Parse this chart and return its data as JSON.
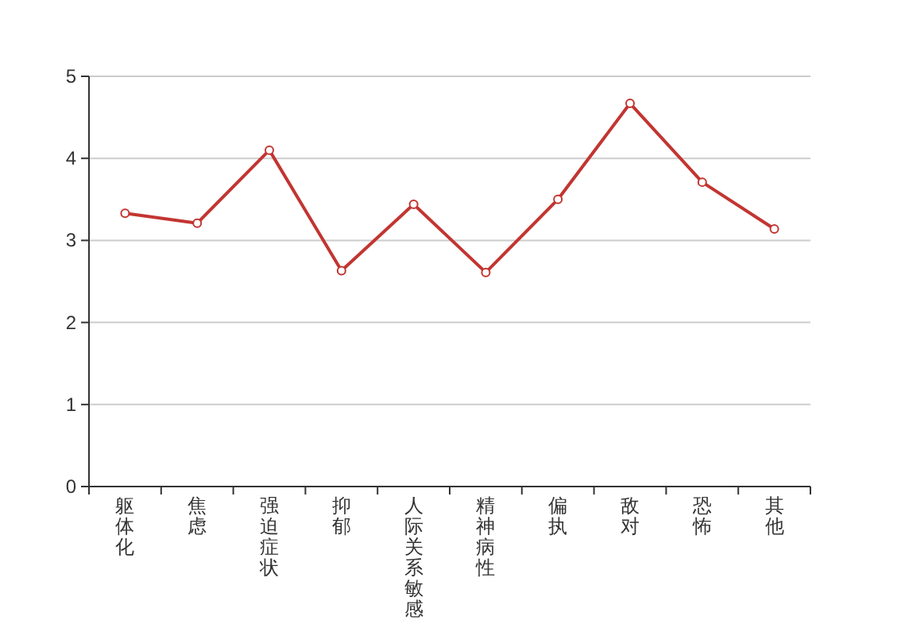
{
  "chart_data": {
    "type": "line",
    "categories": [
      "躯体化",
      "焦虑",
      "强迫症状",
      "抑郁",
      "人际关系敏感",
      "精神病性",
      "偏执",
      "敌对",
      "恐怖",
      "其他"
    ],
    "series": [
      {
        "color": "#c23531",
        "values": [
          3.33,
          3.21,
          4.1,
          2.63,
          3.44,
          2.61,
          3.5,
          4.67,
          3.71,
          3.14
        ]
      }
    ],
    "ylim": [
      0,
      5
    ],
    "yticks": [
      0,
      1,
      2,
      3,
      4,
      5
    ],
    "grid": "y",
    "marker": "circle",
    "line_style": "solid"
  }
}
